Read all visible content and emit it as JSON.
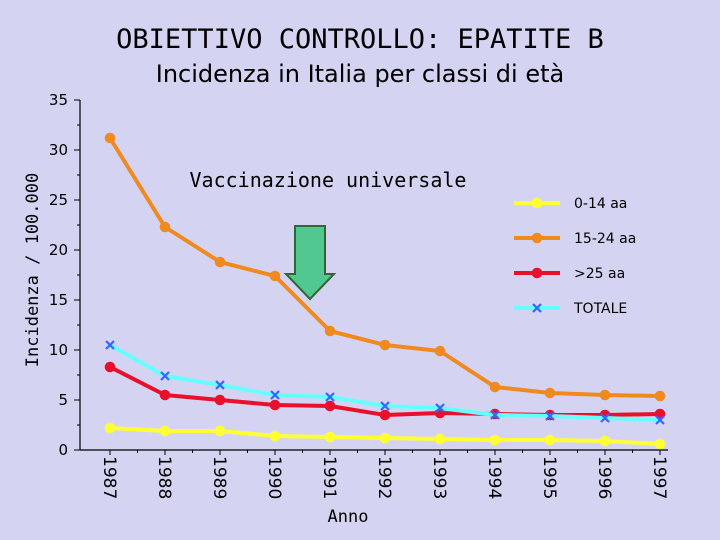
{
  "header": {
    "title": "OBIETTIVO CONTROLLO: EPATITE B",
    "subtitle": "Incidenza in Italia per classi di età"
  },
  "annotation": {
    "text": "Vaccinazione universale",
    "arrow_at_year": "1991",
    "arrow_color": "#50c890"
  },
  "chart_data": {
    "type": "line",
    "title": "OBIETTIVO CONTROLLO: EPATITE B",
    "subtitle": "Incidenza in Italia per classi di età",
    "xlabel": "Anno",
    "ylabel": "Incidenza / 100.000",
    "categories": [
      "1987",
      "1988",
      "1989",
      "1990",
      "1991",
      "1992",
      "1993",
      "1994",
      "1995",
      "1996",
      "1997"
    ],
    "ylim": [
      0,
      35
    ],
    "yticks": [
      0,
      5,
      10,
      15,
      20,
      25,
      30,
      35
    ],
    "legend_position": "right",
    "series": [
      {
        "name": "0-14 aa",
        "color": "#ffff33",
        "marker": "circle",
        "values": [
          2.2,
          1.9,
          1.9,
          1.4,
          1.3,
          1.2,
          1.1,
          1.0,
          1.0,
          0.9,
          0.6
        ]
      },
      {
        "name": "15-24 aa",
        "color": "#f08a1e",
        "marker": "circle",
        "values": [
          31.2,
          22.3,
          18.8,
          17.4,
          11.9,
          10.5,
          9.9,
          6.3,
          5.7,
          5.5,
          5.4
        ]
      },
      {
        "name": ">25 aa",
        "color": "#e8102a",
        "marker": "circle",
        "values": [
          8.3,
          5.5,
          5.0,
          4.5,
          4.4,
          3.5,
          3.7,
          3.6,
          3.5,
          3.5,
          3.6
        ]
      },
      {
        "name": "TOTALE",
        "color": "#66ffff",
        "marker": "x",
        "values": [
          10.5,
          7.4,
          6.5,
          5.5,
          5.3,
          4.4,
          4.2,
          3.5,
          3.4,
          3.2,
          3.0
        ]
      }
    ]
  }
}
